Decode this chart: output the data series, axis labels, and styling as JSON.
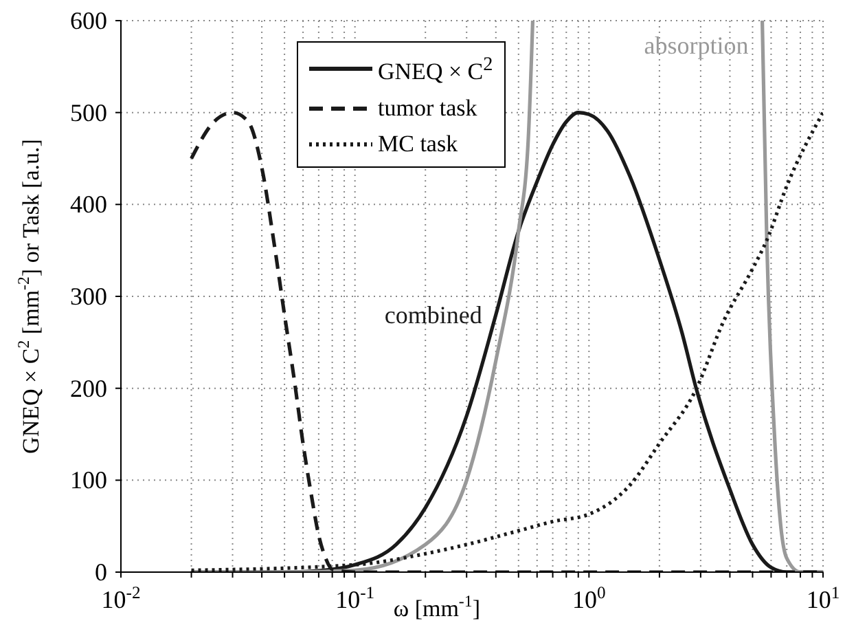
{
  "chart_data": {
    "type": "line",
    "xlabel": "ω [mm$^{-1}$]",
    "ylabel": "GNEQ × C$^{2}$ [mm$^{-2}$] or Task [a.u.]",
    "legend_title": "GNEQ × C$^{2}$",
    "log": "x",
    "grid": true,
    "legend": "top",
    "xlim": [
      0.01,
      10
    ],
    "ylim": [
      0,
      600
    ],
    "xticks": [
      {
        "value": 0.01,
        "label": "10$^{-2}$"
      },
      {
        "value": 0.02,
        "label": null
      },
      {
        "value": 0.03,
        "label": null
      },
      {
        "value": 0.04,
        "label": null
      },
      {
        "value": 0.05,
        "label": null
      },
      {
        "value": 0.06,
        "label": null
      },
      {
        "value": 0.07,
        "label": null
      },
      {
        "value": 0.08,
        "label": null
      },
      {
        "value": 0.09,
        "label": null
      },
      {
        "value": 0.1,
        "label": "10$^{-1}$"
      },
      {
        "value": 0.2,
        "label": null
      },
      {
        "value": 0.3,
        "label": null
      },
      {
        "value": 0.4,
        "label": null
      },
      {
        "value": 0.5,
        "label": null
      },
      {
        "value": 0.6,
        "label": null
      },
      {
        "value": 0.7,
        "label": null
      },
      {
        "value": 0.8,
        "label": null
      },
      {
        "value": 0.9,
        "label": null
      },
      {
        "value": 1,
        "label": "10$^{0}$"
      },
      {
        "value": 2,
        "label": null
      },
      {
        "value": 3,
        "label": null
      },
      {
        "value": 4,
        "label": null
      },
      {
        "value": 5,
        "label": null
      },
      {
        "value": 6,
        "label": null
      },
      {
        "value": 7,
        "label": null
      },
      {
        "value": 8,
        "label": null
      },
      {
        "value": 9,
        "label": null
      },
      {
        "value": 10,
        "label": "10$^{1}$"
      }
    ],
    "yticks": [
      0,
      100,
      200,
      300,
      400,
      500,
      600
    ],
    "series": [
      {
        "name": "combined",
        "color": "#1a1a1a",
        "line_style": "solid",
        "x": [
          0.02,
          0.05,
          0.08,
          0.1,
          0.15,
          0.2,
          0.3,
          0.4,
          0.5,
          0.6,
          0.7,
          0.8,
          0.9,
          1,
          1.2,
          1.5,
          2,
          2.5,
          2.87,
          4,
          5,
          6,
          7,
          10
        ],
        "values": [
          0,
          0,
          3,
          8,
          30,
          70,
          170,
          280,
          371,
          425,
          465,
          490,
          500,
          498,
          480,
          430,
          340,
          260,
          200,
          90,
          30,
          5,
          0,
          0
        ]
      },
      {
        "name": "absorption",
        "color": "#999999",
        "line_style": "solid",
        "x": [
          0.02,
          0.05,
          0.1,
          0.2,
          0.3,
          0.4,
          0.5,
          0.55,
          0.575,
          0.6,
          5.4,
          5.5,
          5.75,
          6.2,
          6.6,
          7,
          8,
          10
        ],
        "values": [
          0,
          0,
          2,
          30,
          100,
          230,
          371,
          470,
          600,
          null,
          null,
          600,
          361,
          150,
          50,
          15,
          0,
          0
        ]
      },
      {
        "name": "tumor task",
        "color": "#1a1a1a",
        "line_style": "dashed",
        "x": [
          0.02,
          0.025,
          0.03,
          0.035,
          0.04,
          0.045,
          0.05,
          0.055,
          0.06,
          0.065,
          0.07,
          0.075,
          0.08,
          0.1,
          1,
          10
        ],
        "values": [
          450,
          490,
          500,
          490,
          440,
          360,
          280,
          210,
          140,
          85,
          40,
          15,
          3,
          0,
          0,
          0
        ]
      },
      {
        "name": "MC task",
        "color": "#1a1a1a",
        "line_style": "dotted",
        "x": [
          0.02,
          0.1,
          0.2,
          0.3,
          0.5,
          0.7,
          1,
          1.5,
          2,
          2.87,
          3.76,
          5,
          5.75,
          7,
          10
        ],
        "values": [
          2,
          8,
          20,
          30,
          45,
          55,
          63,
          95,
          140,
          199,
          273,
          330,
          361,
          420,
          500
        ]
      }
    ]
  }
}
